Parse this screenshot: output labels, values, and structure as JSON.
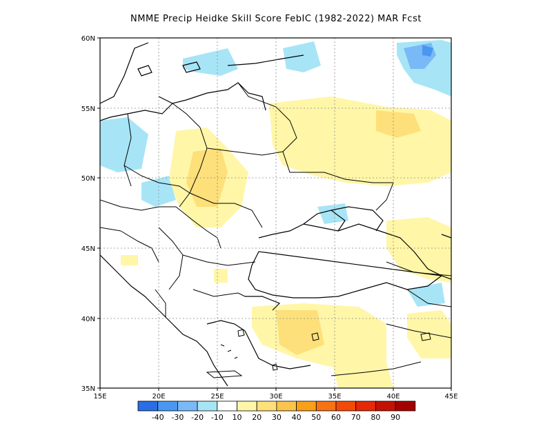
{
  "title": "NMME Precip Heidke Skill Score FebIC (1982-2022) MAR Fcst",
  "map": {
    "lon_range": [
      15,
      45
    ],
    "lat_range": [
      35,
      60
    ],
    "lon_ticks": [
      "15E",
      "20E",
      "25E",
      "30E",
      "35E",
      "40E",
      "45E"
    ],
    "lat_ticks": [
      "35N",
      "40N",
      "45N",
      "50N",
      "55N",
      "60N"
    ],
    "grid": "dotted",
    "region": "Eastern Europe / Black Sea"
  },
  "colorbar": {
    "colors": [
      "#2a6ee6",
      "#4a97f2",
      "#7ab9f7",
      "#a7e5f6",
      "#ffffff",
      "#fff6a8",
      "#fde07a",
      "#fbc44b",
      "#f9a019",
      "#f77212",
      "#f44a08",
      "#e42808",
      "#c51104",
      "#a30000"
    ],
    "labels": [
      "-40",
      "-30",
      "-20",
      "-10",
      "10",
      "20",
      "30",
      "40",
      "50",
      "60",
      "70",
      "80",
      "90"
    ]
  },
  "features": {
    "skill_patches": [
      {
        "region": "far northeast near 57N 41E",
        "bin": "-30"
      },
      {
        "region": "northeast near 58N 40E",
        "bin": "-10"
      },
      {
        "region": "north Poland / Baltic",
        "bin": "-10"
      },
      {
        "region": "Czechia / SE Poland",
        "bin": "-10"
      },
      {
        "region": "west Ukraine",
        "bin": "20"
      },
      {
        "region": "western Russia",
        "bin": "10"
      },
      {
        "region": "central Turkey",
        "bin": "20"
      },
      {
        "region": "Caucasus",
        "bin": "10"
      }
    ]
  }
}
